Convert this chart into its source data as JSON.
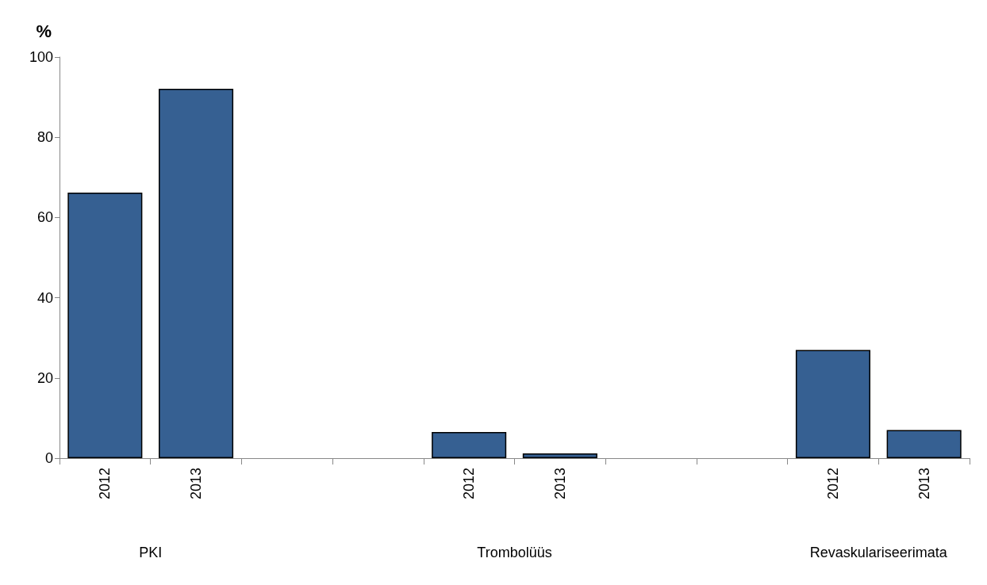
{
  "chart_data": {
    "type": "bar",
    "ylabel": "%",
    "categories": [
      "2012",
      "2013",
      null,
      null,
      "2012",
      "2013",
      null,
      null,
      "2012",
      "2013"
    ],
    "values": [
      66.2,
      92.1,
      null,
      null,
      6.5,
      1.2,
      null,
      null,
      27,
      7
    ],
    "color": "#366092",
    "ylim": [
      0,
      100
    ],
    "yticks": [
      0,
      20,
      40,
      60,
      80,
      100
    ],
    "grid": false,
    "annotations": [
      "PKI",
      "Trombolüüs",
      "Revaskulariseerimata"
    ]
  }
}
